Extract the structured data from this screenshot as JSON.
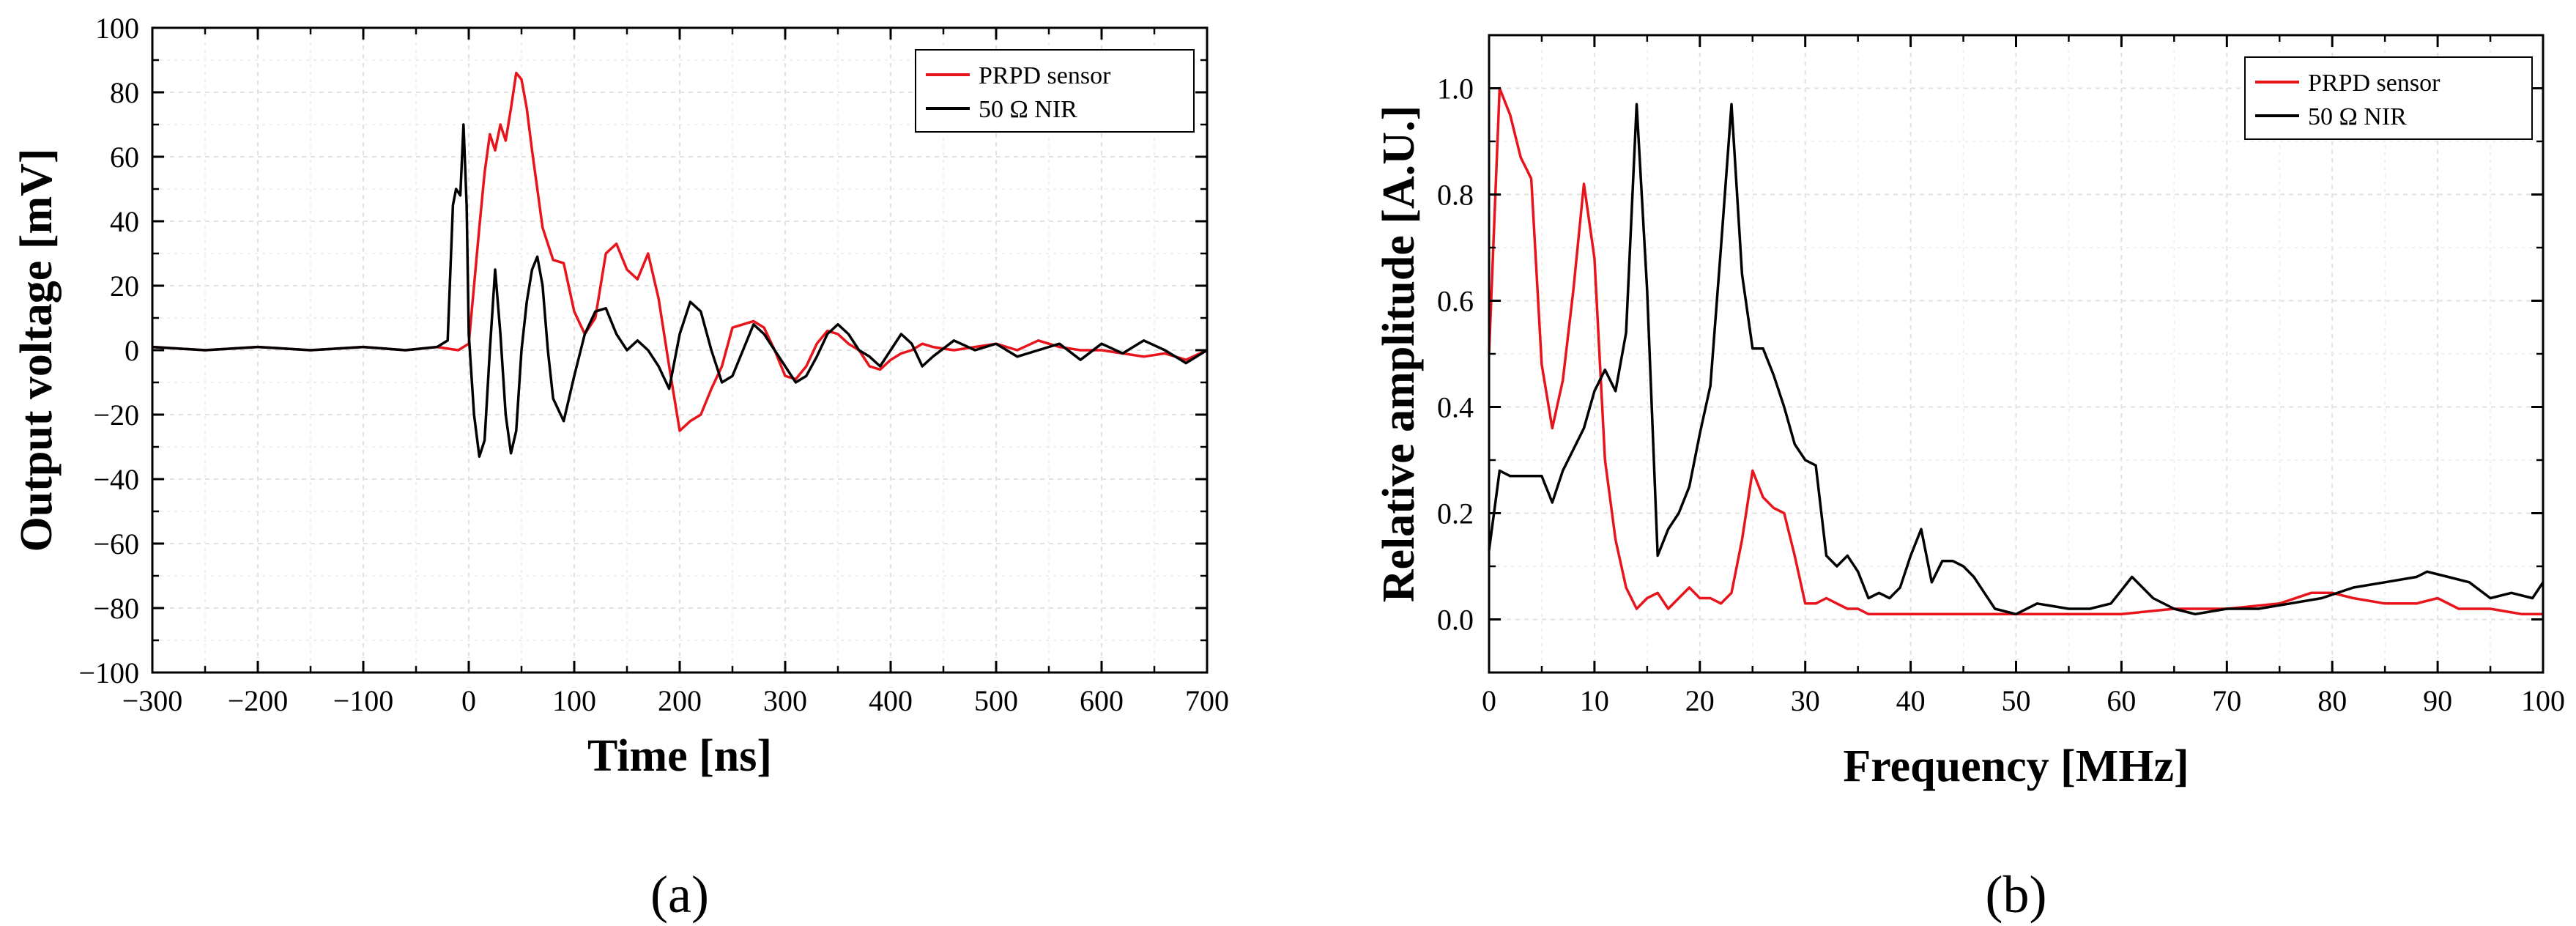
{
  "chart_data": [
    {
      "id": "a",
      "type": "line",
      "panel_label": "(a)",
      "title": "",
      "xlabel": "Time [ns]",
      "ylabel": "Output voltage [mV]",
      "xlim": [
        -300,
        700
      ],
      "ylim": [
        -100,
        100
      ],
      "xticks": [
        -300,
        -200,
        -100,
        0,
        100,
        200,
        300,
        400,
        500,
        600,
        700
      ],
      "xtick_labels": [
        "−300",
        "−200",
        "−100",
        "0",
        "100",
        "200",
        "300",
        "400",
        "500",
        "600",
        "700"
      ],
      "yticks": [
        -100,
        -80,
        -60,
        -40,
        -20,
        0,
        20,
        40,
        60,
        80,
        100
      ],
      "ytick_labels": [
        "−100",
        "−80",
        "−60",
        "−40",
        "−20",
        "0",
        "20",
        "40",
        "60",
        "80",
        "100"
      ],
      "grid": true,
      "legend_position": "top-right",
      "series": [
        {
          "name": "PRPD sensor",
          "color": "#e8141b",
          "x": [
            -300,
            -250,
            -200,
            -150,
            -100,
            -60,
            -30,
            -10,
            0,
            5,
            10,
            15,
            20,
            25,
            30,
            35,
            40,
            45,
            50,
            55,
            60,
            65,
            70,
            80,
            90,
            100,
            110,
            120,
            130,
            140,
            150,
            160,
            170,
            180,
            190,
            200,
            210,
            220,
            230,
            240,
            250,
            260,
            270,
            280,
            290,
            300,
            310,
            320,
            330,
            340,
            350,
            360,
            370,
            380,
            390,
            400,
            410,
            420,
            430,
            440,
            460,
            480,
            500,
            520,
            540,
            560,
            580,
            600,
            620,
            640,
            660,
            680,
            700
          ],
          "y": [
            1,
            0,
            1,
            0,
            1,
            0,
            1,
            0,
            2,
            20,
            38,
            55,
            67,
            62,
            70,
            65,
            75,
            86,
            84,
            75,
            62,
            50,
            38,
            28,
            27,
            12,
            5,
            10,
            30,
            33,
            25,
            22,
            30,
            16,
            -5,
            -25,
            -22,
            -20,
            -12,
            -5,
            7,
            8,
            9,
            7,
            0,
            -8,
            -9,
            -5,
            2,
            6,
            5,
            2,
            0,
            -5,
            -6,
            -3,
            -1,
            0,
            2,
            1,
            0,
            1,
            2,
            0,
            3,
            1,
            0,
            0,
            -1,
            -2,
            -1,
            -3,
            0
          ]
        },
        {
          "name": "50 Ω NIR",
          "color": "#000000",
          "x": [
            -300,
            -250,
            -200,
            -150,
            -100,
            -60,
            -30,
            -20,
            -15,
            -12,
            -8,
            -5,
            -2,
            0,
            5,
            10,
            15,
            20,
            25,
            30,
            35,
            40,
            45,
            50,
            55,
            60,
            65,
            70,
            75,
            80,
            90,
            100,
            110,
            120,
            130,
            140,
            150,
            160,
            170,
            180,
            190,
            200,
            210,
            220,
            230,
            240,
            250,
            260,
            270,
            280,
            290,
            300,
            310,
            320,
            330,
            340,
            350,
            360,
            370,
            380,
            390,
            400,
            410,
            420,
            430,
            440,
            460,
            480,
            500,
            520,
            540,
            560,
            580,
            600,
            620,
            640,
            660,
            680,
            700
          ],
          "y": [
            1,
            0,
            1,
            0,
            1,
            0,
            1,
            3,
            45,
            50,
            48,
            70,
            45,
            5,
            -20,
            -33,
            -28,
            0,
            25,
            5,
            -20,
            -32,
            -25,
            0,
            15,
            25,
            29,
            20,
            0,
            -15,
            -22,
            -8,
            5,
            12,
            13,
            5,
            0,
            3,
            0,
            -5,
            -12,
            5,
            15,
            12,
            0,
            -10,
            -8,
            0,
            8,
            5,
            0,
            -5,
            -10,
            -8,
            -2,
            5,
            8,
            5,
            0,
            -2,
            -5,
            0,
            5,
            2,
            -5,
            -2,
            3,
            0,
            2,
            -2,
            0,
            2,
            -3,
            2,
            -1,
            3,
            0,
            -4,
            0
          ]
        }
      ]
    },
    {
      "id": "b",
      "type": "line",
      "panel_label": "(b)",
      "title": "",
      "xlabel": "Frequency [MHz]",
      "ylabel": "Relative amplitude [A.U.]",
      "xlim": [
        0,
        100
      ],
      "ylim": [
        -0.1,
        1.1
      ],
      "xticks": [
        0,
        10,
        20,
        30,
        40,
        50,
        60,
        70,
        80,
        90,
        100
      ],
      "xtick_labels": [
        "0",
        "10",
        "20",
        "30",
        "40",
        "50",
        "60",
        "70",
        "80",
        "90",
        "100"
      ],
      "yticks": [
        0.0,
        0.2,
        0.4,
        0.6,
        0.8,
        1.0
      ],
      "ytick_labels": [
        "0.0",
        "0.2",
        "0.4",
        "0.6",
        "0.8",
        "1.0"
      ],
      "grid": true,
      "legend_position": "top-right",
      "series": [
        {
          "name": "PRPD sensor",
          "color": "#e8141b",
          "x": [
            0,
            1,
            2,
            3,
            4,
            5,
            6,
            7,
            8,
            9,
            10,
            11,
            12,
            13,
            14,
            15,
            16,
            17,
            18,
            19,
            20,
            21,
            22,
            23,
            24,
            25,
            26,
            27,
            28,
            29,
            30,
            31,
            32,
            33,
            34,
            35,
            36,
            37,
            38,
            40,
            42,
            45,
            50,
            55,
            60,
            65,
            70,
            75,
            78,
            80,
            82,
            85,
            88,
            90,
            92,
            95,
            98,
            100
          ],
          "y": [
            0.5,
            1.0,
            0.95,
            0.87,
            0.83,
            0.48,
            0.36,
            0.45,
            0.62,
            0.82,
            0.68,
            0.3,
            0.15,
            0.06,
            0.02,
            0.04,
            0.05,
            0.02,
            0.04,
            0.06,
            0.04,
            0.04,
            0.03,
            0.05,
            0.15,
            0.28,
            0.23,
            0.21,
            0.2,
            0.12,
            0.03,
            0.03,
            0.04,
            0.03,
            0.02,
            0.02,
            0.01,
            0.01,
            0.01,
            0.01,
            0.01,
            0.01,
            0.01,
            0.01,
            0.01,
            0.02,
            0.02,
            0.03,
            0.05,
            0.05,
            0.04,
            0.03,
            0.03,
            0.04,
            0.02,
            0.02,
            0.01,
            0.01
          ]
        },
        {
          "name": "50 Ω NIR",
          "color": "#000000",
          "x": [
            0,
            1,
            2,
            3,
            4,
            5,
            6,
            7,
            8,
            9,
            10,
            11,
            12,
            13,
            14,
            15,
            16,
            17,
            18,
            19,
            20,
            21,
            22,
            23,
            24,
            25,
            26,
            27,
            28,
            29,
            30,
            31,
            32,
            33,
            34,
            35,
            36,
            37,
            38,
            39,
            40,
            41,
            42,
            43,
            44,
            45,
            46,
            47,
            48,
            50,
            52,
            55,
            57,
            59,
            61,
            63,
            65,
            67,
            70,
            73,
            76,
            79,
            82,
            85,
            88,
            89,
            91,
            93,
            95,
            97,
            99,
            100
          ],
          "y": [
            0.13,
            0.28,
            0.27,
            0.27,
            0.27,
            0.27,
            0.22,
            0.28,
            0.32,
            0.36,
            0.43,
            0.47,
            0.43,
            0.54,
            0.97,
            0.62,
            0.12,
            0.17,
            0.2,
            0.25,
            0.35,
            0.44,
            0.7,
            0.97,
            0.65,
            0.51,
            0.51,
            0.46,
            0.4,
            0.33,
            0.3,
            0.29,
            0.12,
            0.1,
            0.12,
            0.09,
            0.04,
            0.05,
            0.04,
            0.06,
            0.12,
            0.17,
            0.07,
            0.11,
            0.11,
            0.1,
            0.08,
            0.05,
            0.02,
            0.01,
            0.03,
            0.02,
            0.02,
            0.03,
            0.08,
            0.04,
            0.02,
            0.01,
            0.02,
            0.02,
            0.03,
            0.04,
            0.06,
            0.07,
            0.08,
            0.09,
            0.08,
            0.07,
            0.04,
            0.05,
            0.04,
            0.07
          ]
        }
      ]
    }
  ]
}
